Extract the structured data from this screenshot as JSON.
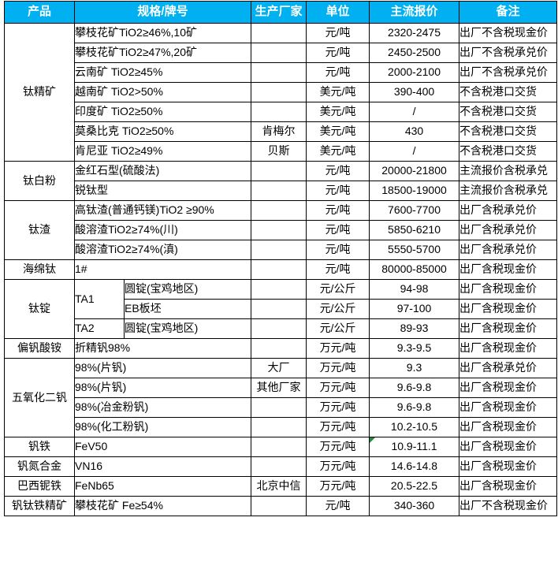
{
  "table": {
    "colors": {
      "header_bg": "#00B0F0",
      "header_text": "#FFFFFF",
      "border": "#000000",
      "marker_green": "#1E8E3E"
    },
    "header": {
      "product": "产品",
      "spec": "规格/牌号",
      "manufacturer": "生产厂家",
      "unit": "单位",
      "price": "主流报价",
      "note": "备注"
    },
    "rows": [
      [
        {
          "type": "product",
          "text": "钛精矿",
          "rowspan": 7
        },
        {
          "type": "spec",
          "text": "攀枝花矿TiO2≥46%,10矿",
          "colspan": 2
        },
        {
          "type": "mfr",
          "text": ""
        },
        {
          "type": "unit",
          "text": "元/吨"
        },
        {
          "type": "price",
          "text": "2320-2475"
        },
        {
          "type": "note",
          "text": "出厂不含税现金价"
        }
      ],
      [
        {
          "type": "spec",
          "text": "攀枝花矿TiO2≥47%,20矿",
          "colspan": 2
        },
        {
          "type": "mfr",
          "text": ""
        },
        {
          "type": "unit",
          "text": "元/吨"
        },
        {
          "type": "price",
          "text": "2450-2500"
        },
        {
          "type": "note",
          "text": "出厂不含税承兑价"
        }
      ],
      [
        {
          "type": "spec",
          "text": "云南矿 TiO2≥45%",
          "colspan": 2
        },
        {
          "type": "mfr",
          "text": ""
        },
        {
          "type": "unit",
          "text": "元/吨"
        },
        {
          "type": "price",
          "text": "2000-2100"
        },
        {
          "type": "note",
          "text": "出厂不含税承兑价"
        }
      ],
      [
        {
          "type": "spec",
          "text": "越南矿 TiO2>50%",
          "colspan": 2
        },
        {
          "type": "mfr",
          "text": ""
        },
        {
          "type": "unit",
          "text": "美元/吨"
        },
        {
          "type": "price",
          "text": "390-400"
        },
        {
          "type": "note",
          "text": "不含税港口交货"
        }
      ],
      [
        {
          "type": "spec",
          "text": "印度矿 TiO2≥50%",
          "colspan": 2
        },
        {
          "type": "mfr",
          "text": ""
        },
        {
          "type": "unit",
          "text": "美元/吨"
        },
        {
          "type": "price",
          "text": "/"
        },
        {
          "type": "note",
          "text": "不含税港口交货"
        }
      ],
      [
        {
          "type": "spec",
          "text": "莫桑比克 TiO2≥50%",
          "colspan": 2
        },
        {
          "type": "mfr",
          "text": "肯梅尔"
        },
        {
          "type": "unit",
          "text": "美元/吨"
        },
        {
          "type": "price",
          "text": "430"
        },
        {
          "type": "note",
          "text": "不含税港口交货"
        }
      ],
      [
        {
          "type": "spec",
          "text": "肯尼亚 TiO2≥49%",
          "colspan": 2
        },
        {
          "type": "mfr",
          "text": "贝斯"
        },
        {
          "type": "unit",
          "text": "美元/吨"
        },
        {
          "type": "price",
          "text": "/"
        },
        {
          "type": "note",
          "text": "不含税港口交货"
        }
      ],
      [
        {
          "type": "product",
          "text": "钛白粉",
          "rowspan": 2
        },
        {
          "type": "spec",
          "text": "金红石型(硫酸法)",
          "colspan": 2
        },
        {
          "type": "mfr",
          "text": ""
        },
        {
          "type": "unit",
          "text": "元/吨"
        },
        {
          "type": "price",
          "text": "20000-21800"
        },
        {
          "type": "note",
          "text": "主流报价含税承兑"
        }
      ],
      [
        {
          "type": "spec",
          "text": "锐钛型",
          "colspan": 2
        },
        {
          "type": "mfr",
          "text": ""
        },
        {
          "type": "unit",
          "text": "元/吨"
        },
        {
          "type": "price",
          "text": "18500-19000"
        },
        {
          "type": "note",
          "text": "主流报价含税承兑"
        }
      ],
      [
        {
          "type": "product",
          "text": "钛渣",
          "rowspan": 3
        },
        {
          "type": "spec",
          "text": "高钛渣(普通钙镁)TiO2 ≥90%",
          "colspan": 2
        },
        {
          "type": "mfr",
          "text": ""
        },
        {
          "type": "unit",
          "text": "元/吨"
        },
        {
          "type": "price",
          "text": "7600-7700"
        },
        {
          "type": "note",
          "text": "出厂含税承兑价"
        }
      ],
      [
        {
          "type": "spec",
          "text": "酸溶渣TiO2≥74%(川)",
          "colspan": 2
        },
        {
          "type": "mfr",
          "text": ""
        },
        {
          "type": "unit",
          "text": "元/吨"
        },
        {
          "type": "price",
          "text": "5850-6210"
        },
        {
          "type": "note",
          "text": "出厂含税承兑价"
        }
      ],
      [
        {
          "type": "spec",
          "text": "酸溶渣TiO2≥74%(滇)",
          "colspan": 2
        },
        {
          "type": "mfr",
          "text": ""
        },
        {
          "type": "unit",
          "text": "元/吨"
        },
        {
          "type": "price",
          "text": "5550-5700"
        },
        {
          "type": "note",
          "text": "出厂含税承兑价"
        }
      ],
      [
        {
          "type": "product",
          "text": "海绵钛"
        },
        {
          "type": "spec",
          "text": "1#",
          "colspan": 2
        },
        {
          "type": "mfr",
          "text": ""
        },
        {
          "type": "unit",
          "text": "元/吨"
        },
        {
          "type": "price",
          "text": "80000-85000"
        },
        {
          "type": "note",
          "text": "出厂含税现金价"
        }
      ],
      [
        {
          "type": "product",
          "text": "钛锭",
          "rowspan": 3
        },
        {
          "type": "speca",
          "text": "TA1",
          "rowspan": 2
        },
        {
          "type": "specb",
          "text": "圆锭(宝鸡地区)"
        },
        {
          "type": "mfr",
          "text": ""
        },
        {
          "type": "unit",
          "text": "元/公斤"
        },
        {
          "type": "price",
          "text": "94-98"
        },
        {
          "type": "note",
          "text": "出厂含税现金价"
        }
      ],
      [
        {
          "type": "specb",
          "text": "EB板坯"
        },
        {
          "type": "mfr",
          "text": ""
        },
        {
          "type": "unit",
          "text": "元/公斤"
        },
        {
          "type": "price",
          "text": "97-100"
        },
        {
          "type": "note",
          "text": "出厂含税现金价"
        }
      ],
      [
        {
          "type": "speca",
          "text": "TA2"
        },
        {
          "type": "specb",
          "text": "圆锭(宝鸡地区)"
        },
        {
          "type": "mfr",
          "text": ""
        },
        {
          "type": "unit",
          "text": "元/公斤"
        },
        {
          "type": "price",
          "text": "89-93"
        },
        {
          "type": "note",
          "text": "出厂含税现金价"
        }
      ],
      [
        {
          "type": "product",
          "text": "偏钒酸铵"
        },
        {
          "type": "spec",
          "text": "折精钒98%",
          "colspan": 2
        },
        {
          "type": "mfr",
          "text": ""
        },
        {
          "type": "unit",
          "text": "万元/吨"
        },
        {
          "type": "price",
          "text": "9.3-9.5"
        },
        {
          "type": "note",
          "text": "出厂含税现金价"
        }
      ],
      [
        {
          "type": "product",
          "text": "五氧化二钒",
          "rowspan": 4
        },
        {
          "type": "spec",
          "text": "98%(片钒)",
          "colspan": 2
        },
        {
          "type": "mfr",
          "text": "大厂"
        },
        {
          "type": "unit",
          "text": "万元/吨"
        },
        {
          "type": "price",
          "text": "9.3"
        },
        {
          "type": "note",
          "text": "出厂含税承兑价"
        }
      ],
      [
        {
          "type": "spec",
          "text": "98%(片钒)",
          "colspan": 2
        },
        {
          "type": "mfr",
          "text": "其他厂家"
        },
        {
          "type": "unit",
          "text": "万元/吨"
        },
        {
          "type": "price",
          "text": "9.6-9.8"
        },
        {
          "type": "note",
          "text": "出厂含税现金价"
        }
      ],
      [
        {
          "type": "spec",
          "text": "98%(冶金粉钒)",
          "colspan": 2
        },
        {
          "type": "mfr",
          "text": ""
        },
        {
          "type": "unit",
          "text": "万元/吨"
        },
        {
          "type": "price",
          "text": "9.6-9.8"
        },
        {
          "type": "note",
          "text": "出厂含税现金价"
        }
      ],
      [
        {
          "type": "spec",
          "text": "98%(化工粉钒)",
          "colspan": 2
        },
        {
          "type": "mfr",
          "text": ""
        },
        {
          "type": "unit",
          "text": "万元/吨"
        },
        {
          "type": "price",
          "text": "10.2-10.5"
        },
        {
          "type": "note",
          "text": "出厂含税现金价"
        }
      ],
      [
        {
          "type": "product",
          "text": "钒铁"
        },
        {
          "type": "spec",
          "text": "FeV50",
          "colspan": 2
        },
        {
          "type": "mfr",
          "text": ""
        },
        {
          "type": "unit",
          "text": "万元/吨"
        },
        {
          "type": "price",
          "text": "10.9-11.1",
          "marker": true
        },
        {
          "type": "note",
          "text": "出厂含税现金价"
        }
      ],
      [
        {
          "type": "product",
          "text": "钒氮合金"
        },
        {
          "type": "spec",
          "text": "VN16",
          "colspan": 2
        },
        {
          "type": "mfr",
          "text": ""
        },
        {
          "type": "unit",
          "text": "万元/吨"
        },
        {
          "type": "price",
          "text": "14.6-14.8"
        },
        {
          "type": "note",
          "text": "出厂含税现金价"
        }
      ],
      [
        {
          "type": "product",
          "text": "巴西铌铁"
        },
        {
          "type": "spec",
          "text": "FeNb65",
          "colspan": 2
        },
        {
          "type": "mfr",
          "text": "北京中信"
        },
        {
          "type": "unit",
          "text": "万元/吨"
        },
        {
          "type": "price",
          "text": "20.5-22.5"
        },
        {
          "type": "note",
          "text": "出厂含税现金价"
        }
      ],
      [
        {
          "type": "product",
          "text": "钒钛铁精矿"
        },
        {
          "type": "spec",
          "text": "攀枝花矿 Fe≥54%",
          "colspan": 2
        },
        {
          "type": "mfr",
          "text": ""
        },
        {
          "type": "unit",
          "text": "元/吨"
        },
        {
          "type": "price",
          "text": "340-360"
        },
        {
          "type": "note",
          "text": "出厂不含税现金价"
        }
      ]
    ]
  }
}
